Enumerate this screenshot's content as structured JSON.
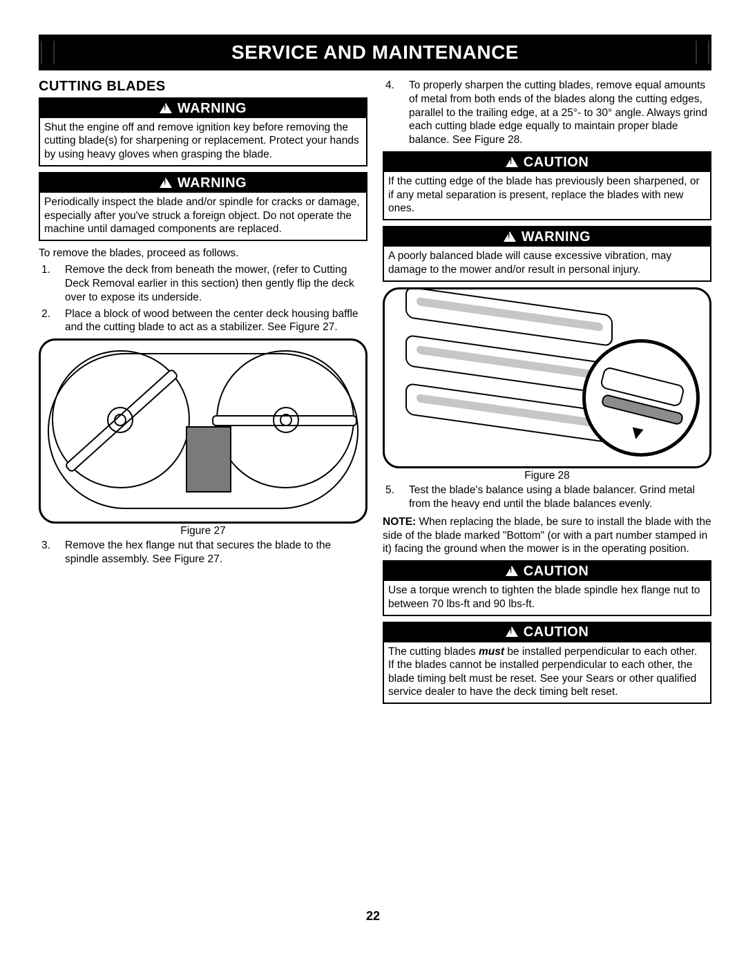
{
  "header": {
    "title": "SERVICE AND MAINTENANCE"
  },
  "left": {
    "heading": "CUTTING BLADES",
    "warn1": {
      "label": "WARNING",
      "text": "Shut the engine off and remove ignition key before removing the cutting blade(s) for sharpening or replacement. Protect your hands by using heavy gloves when grasping the blade."
    },
    "warn2": {
      "label": "WARNING",
      "text": "Periodically inspect the blade and/or spindle for cracks or damage, especially after  you've struck a foreign object. Do not operate the machine until  damaged components are replaced."
    },
    "intro": "To remove the blades, proceed as follows.",
    "steps": [
      "Remove the deck from beneath the mower, (refer to Cutting Deck Removal earlier in this section) then gently flip the deck over to expose its underside.",
      "Place a block of wood between the center deck housing baffle and the cutting blade to act as a stabilizer. See Figure 27."
    ],
    "fig27_caption": "Figure 27",
    "step3": "Remove the hex flange nut that secures the blade to the spindle assembly. See Figure 27."
  },
  "right": {
    "step4": "To properly sharpen the cutting blades, remove equal amounts of metal from both ends of the blades along the cutting edges, parallel to the trailing edge, at a 25°- to 30° angle. Always grind each cutting blade edge equally to maintain proper blade balance. See Figure 28.",
    "caution1": {
      "label": "CAUTION",
      "text": "If the cutting edge of the blade has previously been sharpened, or if any metal separation is present, replace the blades with new ones."
    },
    "warn3": {
      "label": "WARNING",
      "text": "A poorly balanced blade will cause excessive vibration, may damage to the mower and/or result in personal injury."
    },
    "fig28_caption": "Figure 28",
    "step5": "Test the blade's balance using a blade balancer. Grind metal from the heavy end until the blade balances evenly.",
    "note_label": "NOTE:",
    "note_text": " When replacing the blade, be sure to install the blade with the side of the blade marked \"Bottom\" (or with a part number stamped in it) facing the ground when the mower is in the operating position.",
    "caution2": {
      "label": "CAUTION",
      "text": "Use a torque wrench to tighten the blade spindle hex flange nut to between 70 lbs-ft and 90 lbs-ft."
    },
    "caution3": {
      "label": "CAUTION",
      "text_pre": "The cutting blades ",
      "text_em": "must",
      "text_post": " be installed perpendicular to each other. If the blades cannot be installed perpendicular to each other, the blade timing belt must be reset. See your Sears or other qualified service dealer to have the deck timing belt reset."
    }
  },
  "page_number": "22"
}
